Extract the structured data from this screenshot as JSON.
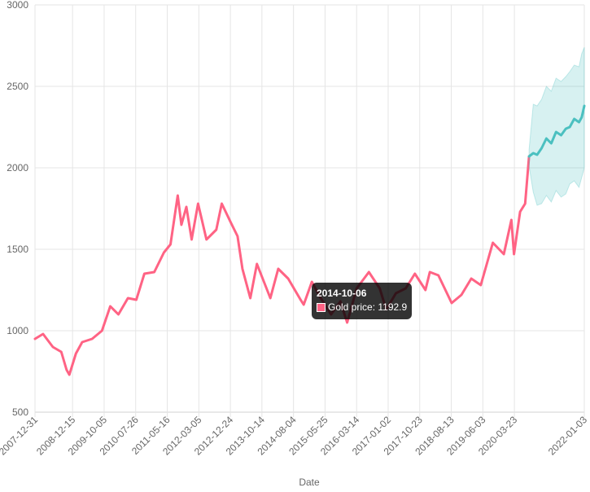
{
  "chart_data": {
    "type": "line",
    "title": "",
    "xlabel": "Date",
    "ylabel": "",
    "ylim": [
      500,
      3000
    ],
    "yticks": [
      500,
      1000,
      1500,
      2000,
      2500,
      3000
    ],
    "grid": true,
    "legend": "none",
    "x_tick_labels": [
      "2007-12-31",
      "2008-12-15",
      "2009-10-05",
      "2010-07-26",
      "2011-05-16",
      "2012-03-05",
      "2012-12-24",
      "2013-10-14",
      "2014-08-04",
      "2015-05-25",
      "2016-03-14",
      "2017-01-02",
      "2017-10-23",
      "2018-08-13",
      "2019-06-03",
      "2020-03-23",
      "2022-01-03"
    ],
    "series": [
      {
        "name": "Gold price",
        "color": "#ff6384",
        "points": [
          [
            "2007-12-31",
            950
          ],
          [
            "2008-03-15",
            980
          ],
          [
            "2008-06-15",
            900
          ],
          [
            "2008-09-01",
            870
          ],
          [
            "2008-10-20",
            760
          ],
          [
            "2008-11-15",
            730
          ],
          [
            "2009-01-15",
            860
          ],
          [
            "2009-03-15",
            930
          ],
          [
            "2009-06-15",
            950
          ],
          [
            "2009-09-15",
            1000
          ],
          [
            "2009-12-01",
            1150
          ],
          [
            "2010-02-15",
            1100
          ],
          [
            "2010-05-15",
            1200
          ],
          [
            "2010-08-01",
            1190
          ],
          [
            "2010-10-15",
            1350
          ],
          [
            "2011-01-15",
            1360
          ],
          [
            "2011-04-15",
            1480
          ],
          [
            "2011-06-15",
            1530
          ],
          [
            "2011-08-22",
            1830
          ],
          [
            "2011-09-25",
            1650
          ],
          [
            "2011-11-10",
            1760
          ],
          [
            "2011-12-29",
            1560
          ],
          [
            "2012-02-27",
            1780
          ],
          [
            "2012-05-15",
            1560
          ],
          [
            "2012-08-15",
            1620
          ],
          [
            "2012-10-05",
            1780
          ],
          [
            "2012-12-31",
            1660
          ],
          [
            "2013-03-01",
            1580
          ],
          [
            "2013-04-15",
            1380
          ],
          [
            "2013-06-28",
            1200
          ],
          [
            "2013-08-28",
            1410
          ],
          [
            "2013-12-31",
            1200
          ],
          [
            "2014-03-15",
            1380
          ],
          [
            "2014-06-15",
            1320
          ],
          [
            "2014-10-06",
            1192.9
          ],
          [
            "2014-11-07",
            1160
          ],
          [
            "2015-01-22",
            1300
          ],
          [
            "2015-04-15",
            1200
          ],
          [
            "2015-07-20",
            1100
          ],
          [
            "2015-10-15",
            1180
          ],
          [
            "2015-12-17",
            1050
          ],
          [
            "2016-03-15",
            1260
          ],
          [
            "2016-07-06",
            1360
          ],
          [
            "2016-10-15",
            1260
          ],
          [
            "2016-12-15",
            1130
          ],
          [
            "2017-03-15",
            1230
          ],
          [
            "2017-06-15",
            1260
          ],
          [
            "2017-09-08",
            1350
          ],
          [
            "2017-12-15",
            1250
          ],
          [
            "2018-01-25",
            1360
          ],
          [
            "2018-04-15",
            1340
          ],
          [
            "2018-08-16",
            1170
          ],
          [
            "2018-11-15",
            1220
          ],
          [
            "2019-02-15",
            1320
          ],
          [
            "2019-05-15",
            1280
          ],
          [
            "2019-09-04",
            1540
          ],
          [
            "2019-12-15",
            1470
          ],
          [
            "2020-02-24",
            1680
          ],
          [
            "2020-03-19",
            1470
          ],
          [
            "2020-05-15",
            1730
          ],
          [
            "2020-07-01",
            1780
          ],
          [
            "2020-08-06",
            2070
          ]
        ]
      },
      {
        "name": "",
        "color": "#4bc0c0",
        "band_color": "#4bc0c0",
        "points": [
          [
            "2020-08-06",
            2070
          ],
          [
            "2020-09-15",
            2090
          ],
          [
            "2020-10-20",
            2080
          ],
          [
            "2020-12-01",
            2120
          ],
          [
            "2021-01-15",
            2180
          ],
          [
            "2021-03-01",
            2150
          ],
          [
            "2021-04-15",
            2220
          ],
          [
            "2021-06-01",
            2200
          ],
          [
            "2021-07-15",
            2240
          ],
          [
            "2021-08-20",
            2250
          ],
          [
            "2021-10-01",
            2300
          ],
          [
            "2021-11-15",
            2280
          ],
          [
            "2021-12-10",
            2310
          ],
          [
            "2022-01-03",
            2380
          ]
        ],
        "lower": [
          2010,
          1850,
          1770,
          1780,
          1830,
          1790,
          1860,
          1820,
          1840,
          1900,
          1920,
          1880,
          1940,
          2000
        ],
        "upper": [
          2110,
          2390,
          2380,
          2420,
          2500,
          2470,
          2550,
          2530,
          2560,
          2590,
          2630,
          2620,
          2700,
          2740
        ]
      }
    ],
    "tooltip": {
      "title": "2014-10-06",
      "label": "Gold price: 1192.9",
      "series_color": "#ff6384"
    }
  }
}
